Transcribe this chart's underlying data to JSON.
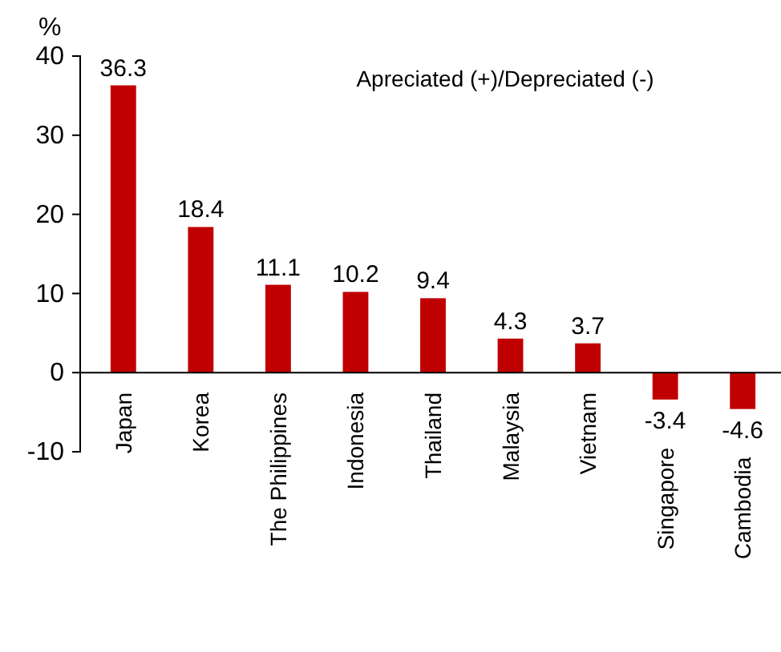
{
  "chart_data": {
    "type": "bar",
    "ylabel": "%",
    "categories": [
      "Japan",
      "Korea",
      "The Philippines",
      "Indonesia",
      "Thailand",
      "Malaysia",
      "Vietnam",
      "Singapore",
      "Cambodia"
    ],
    "values": [
      36.3,
      18.4,
      11.1,
      10.2,
      9.4,
      4.3,
      3.7,
      -3.4,
      -4.6
    ],
    "color": "#c00000",
    "ylim": [
      -10,
      40
    ],
    "yticks": [
      -10,
      0,
      10,
      20,
      30,
      40
    ],
    "data_labels": true,
    "grid": false,
    "annotations": [
      "Apreciated (+)/Depreciated (-)"
    ]
  }
}
